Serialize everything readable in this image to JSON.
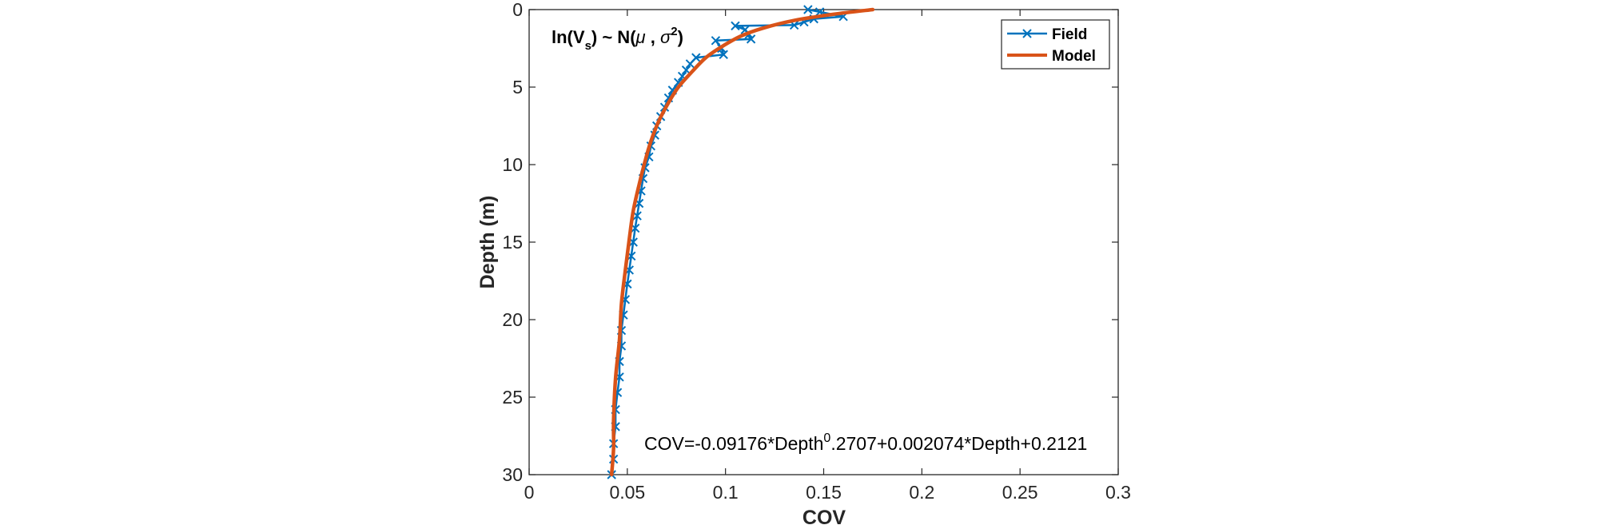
{
  "chart_data": {
    "type": "line",
    "xlabel": "COV",
    "ylabel": "Depth (m)",
    "xlim": [
      0,
      0.3
    ],
    "ylim": [
      0,
      30
    ],
    "y_reversed": true,
    "x_ticks": [
      "0",
      "0.05",
      "0.1",
      "0.15",
      "0.2",
      "0.25",
      "0.3"
    ],
    "y_ticks": [
      "0",
      "5",
      "10",
      "15",
      "20",
      "25",
      "30"
    ],
    "legend_position": "top-right",
    "annotation_left": {
      "prefix": "ln(V",
      "sub": "s",
      "middle": ") ~ N(",
      "mu": "μ",
      "comma": " , ",
      "sigma": "σ",
      "sup": "2",
      "suffix": ")"
    },
    "equation": {
      "prefix": "COV=-0.09176*Depth",
      "sup": "0",
      "suffix": ".2707+0.002074*Depth+0.2121"
    },
    "colors": {
      "field": "#0072BD",
      "model": "#D95319"
    },
    "series": [
      {
        "name": "Field",
        "marker": "x",
        "points": [
          [
            0.142,
            0.0
          ],
          [
            0.148,
            0.15
          ],
          [
            0.16,
            0.45
          ],
          [
            0.145,
            0.6
          ],
          [
            0.14,
            0.8
          ],
          [
            0.135,
            1.0
          ],
          [
            0.105,
            1.05
          ],
          [
            0.11,
            1.3
          ],
          [
            0.112,
            1.6
          ],
          [
            0.113,
            1.9
          ],
          [
            0.095,
            2.0
          ],
          [
            0.098,
            2.5
          ],
          [
            0.099,
            2.9
          ],
          [
            0.085,
            3.1
          ],
          [
            0.082,
            3.5
          ],
          [
            0.08,
            3.9
          ],
          [
            0.078,
            4.3
          ],
          [
            0.076,
            4.7
          ],
          [
            0.073,
            5.2
          ],
          [
            0.071,
            5.7
          ],
          [
            0.069,
            6.3
          ],
          [
            0.067,
            6.9
          ],
          [
            0.065,
            7.5
          ],
          [
            0.064,
            8.1
          ],
          [
            0.062,
            8.8
          ],
          [
            0.061,
            9.5
          ],
          [
            0.059,
            10.2
          ],
          [
            0.058,
            10.9
          ],
          [
            0.057,
            11.7
          ],
          [
            0.056,
            12.5
          ],
          [
            0.055,
            13.3
          ],
          [
            0.054,
            14.1
          ],
          [
            0.053,
            15.0
          ],
          [
            0.052,
            15.9
          ],
          [
            0.051,
            16.8
          ],
          [
            0.05,
            17.7
          ],
          [
            0.049,
            18.7
          ],
          [
            0.048,
            19.7
          ],
          [
            0.047,
            20.7
          ],
          [
            0.047,
            21.7
          ],
          [
            0.046,
            22.7
          ],
          [
            0.046,
            23.7
          ],
          [
            0.045,
            24.7
          ],
          [
            0.044,
            25.8
          ],
          [
            0.044,
            26.9
          ],
          [
            0.043,
            28.0
          ],
          [
            0.043,
            29.0
          ],
          [
            0.042,
            30.0
          ]
        ]
      },
      {
        "name": "Model",
        "points": [
          [
            0.175,
            0.0
          ],
          [
            0.155,
            0.3
          ],
          [
            0.135,
            0.7
          ],
          [
            0.119,
            1.2
          ],
          [
            0.108,
            1.7
          ],
          [
            0.098,
            2.4
          ],
          [
            0.09,
            3.1
          ],
          [
            0.083,
            4.0
          ],
          [
            0.076,
            5.0
          ],
          [
            0.071,
            6.0
          ],
          [
            0.066,
            7.2
          ],
          [
            0.062,
            8.5
          ],
          [
            0.059,
            9.8
          ],
          [
            0.056,
            11.3
          ],
          [
            0.053,
            13.0
          ],
          [
            0.051,
            14.8
          ],
          [
            0.049,
            16.8
          ],
          [
            0.047,
            19.0
          ],
          [
            0.046,
            21.3
          ],
          [
            0.044,
            23.8
          ],
          [
            0.043,
            26.5
          ],
          [
            0.043,
            28.3
          ],
          [
            0.042,
            30.0
          ]
        ]
      }
    ]
  }
}
